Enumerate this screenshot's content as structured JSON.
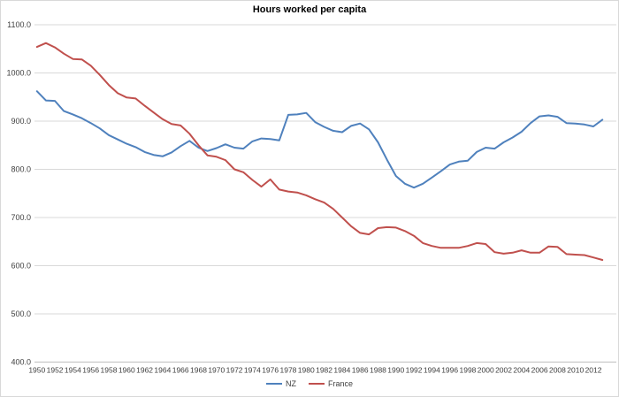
{
  "window": {
    "background": "#FFFFFF",
    "border_color": "#D9D9D9"
  },
  "chart_data": {
    "type": "line",
    "title": "Hours worked per capita",
    "x": [
      1950,
      1951,
      1952,
      1953,
      1954,
      1955,
      1956,
      1957,
      1958,
      1959,
      1960,
      1961,
      1962,
      1963,
      1964,
      1965,
      1966,
      1967,
      1968,
      1969,
      1970,
      1971,
      1972,
      1973,
      1974,
      1975,
      1976,
      1977,
      1978,
      1979,
      1980,
      1981,
      1982,
      1983,
      1984,
      1985,
      1986,
      1987,
      1988,
      1989,
      1990,
      1991,
      1992,
      1993,
      1994,
      1995,
      1996,
      1997,
      1998,
      1999,
      2000,
      2001,
      2002,
      2003,
      2004,
      2005,
      2006,
      2007,
      2008,
      2009,
      2010,
      2011,
      2012,
      2013
    ],
    "x_tick_labels": [
      "1950",
      "1952",
      "1954",
      "1956",
      "1958",
      "1960",
      "1962",
      "1964",
      "1966",
      "1968",
      "1970",
      "1972",
      "1974",
      "1976",
      "1978",
      "1980",
      "1982",
      "1984",
      "1986",
      "1988",
      "1990",
      "1992",
      "1994",
      "1996",
      "1998",
      "2000",
      "2002",
      "2004",
      "2006",
      "2008",
      "2010",
      "2012"
    ],
    "y_axis": {
      "min": 400,
      "max": 1100,
      "tick_step": 100,
      "tick_labels": [
        "1100.0",
        "1000.0",
        "900.0",
        "800.0",
        "700.0",
        "600.0",
        "500.0",
        "400.0"
      ]
    },
    "grid": "horizontal-only",
    "legend_position": "bottom-center",
    "colors": {
      "gridline": "#D9D9D9",
      "axis_line": "#BFBFBF",
      "tick_text": "#404040"
    },
    "series": [
      {
        "name": "NZ",
        "color": "#4F81BD",
        "values": [
          962,
          943,
          942,
          921,
          914,
          906,
          896,
          885,
          871,
          862,
          853,
          846,
          836,
          830,
          827,
          835,
          848,
          859,
          845,
          838,
          844,
          852,
          845,
          843,
          858,
          864,
          863,
          860,
          913,
          914,
          917,
          898,
          888,
          880,
          877,
          890,
          895,
          883,
          856,
          820,
          786,
          770,
          762,
          770,
          783,
          796,
          810,
          816,
          818,
          836,
          845,
          843,
          856,
          866,
          878,
          896,
          910,
          912,
          909,
          896,
          895,
          893,
          889,
          903
        ]
      },
      {
        "name": "France",
        "color": "#C0504D",
        "values": [
          1054,
          1062,
          1053,
          1040,
          1029,
          1028,
          1015,
          996,
          975,
          958,
          949,
          947,
          932,
          918,
          904,
          894,
          891,
          874,
          850,
          829,
          826,
          819,
          800,
          794,
          778,
          764,
          779,
          758,
          754,
          752,
          746,
          738,
          731,
          718,
          700,
          682,
          668,
          665,
          678,
          680,
          679,
          672,
          662,
          647,
          641,
          637,
          637,
          637,
          641,
          647,
          645,
          628,
          625,
          627,
          632,
          627,
          627,
          640,
          639,
          624,
          623,
          622,
          617,
          612
        ]
      }
    ]
  }
}
